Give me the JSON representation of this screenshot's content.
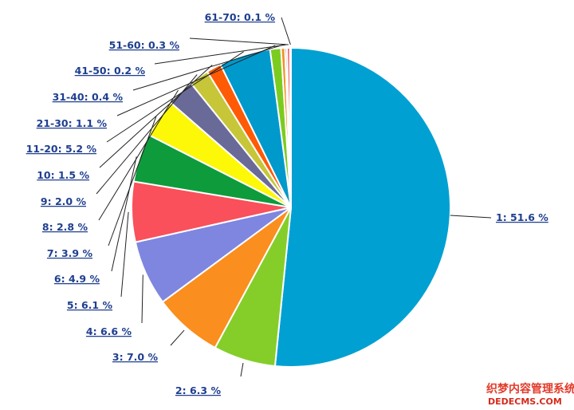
{
  "chart_data": {
    "type": "pie",
    "title": "",
    "slices": [
      {
        "label": "1: 51.6 %",
        "category": "1",
        "value": 51.6,
        "color": "#00a0d2"
      },
      {
        "label": "2: 6.3 %",
        "category": "2",
        "value": 6.3,
        "color": "#85ce2a"
      },
      {
        "label": "3: 7.0 %",
        "category": "3",
        "value": 7.0,
        "color": "#fa8e1e"
      },
      {
        "label": "4: 6.6 %",
        "category": "4",
        "value": 6.6,
        "color": "#7e86e0"
      },
      {
        "label": "5: 6.1 %",
        "category": "5",
        "value": 6.1,
        "color": "#f9505b"
      },
      {
        "label": "6: 4.9 %",
        "category": "6",
        "value": 4.9,
        "color": "#0e9b3c"
      },
      {
        "label": "7: 3.9 %",
        "category": "7",
        "value": 3.9,
        "color": "#fdf708"
      },
      {
        "label": "8: 2.8 %",
        "category": "8",
        "value": 2.8,
        "color": "#6a6a99"
      },
      {
        "label": "9: 2.0 %",
        "category": "9",
        "value": 2.0,
        "color": "#c6c638"
      },
      {
        "label": "10: 1.5 %",
        "category": "10",
        "value": 1.5,
        "color": "#ff5a05"
      },
      {
        "label": "11-20: 5.2 %",
        "category": "11-20",
        "value": 5.2,
        "color": "#0099cc"
      },
      {
        "label": "21-30: 1.1 %",
        "category": "21-30",
        "value": 1.1,
        "color": "#7ccc20"
      },
      {
        "label": "31-40: 0.4 %",
        "category": "31-40",
        "value": 0.4,
        "color": "#f78f1e"
      },
      {
        "label": "41-50: 0.2 %",
        "category": "41-50",
        "value": 0.2,
        "color": "#7c83dd"
      },
      {
        "label": "51-60: 0.3 %",
        "category": "51-60",
        "value": 0.3,
        "color": "#f25a5a"
      },
      {
        "label": "61-70: 0.1 %",
        "category": "61-70",
        "value": 0.1,
        "color": "#119b40"
      }
    ]
  },
  "watermark": {
    "line1": "织梦内容管理系统",
    "line2": "DEDECMS.COM"
  }
}
